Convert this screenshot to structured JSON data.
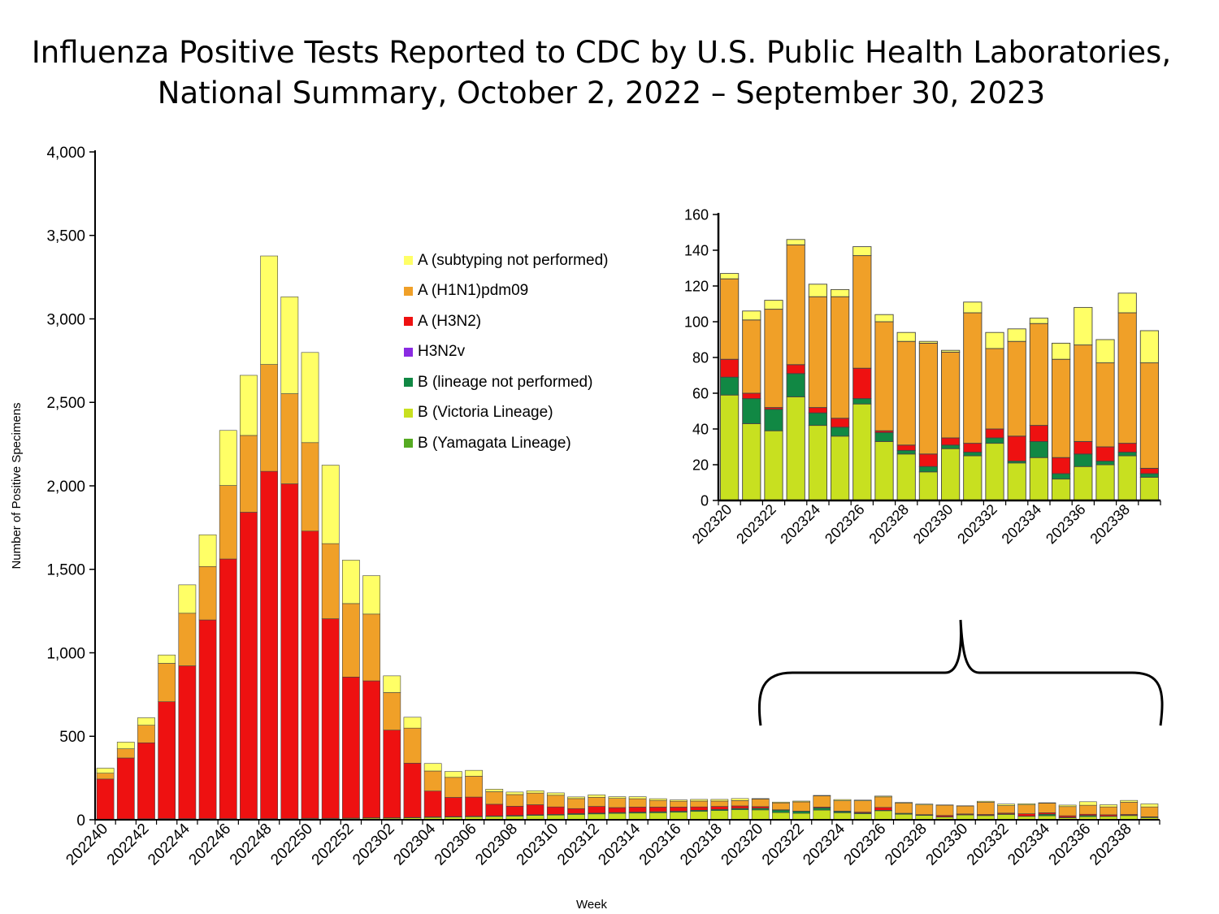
{
  "chart_title": {
    "line1": "Influenza Positive Tests Reported to CDC by U.S. Public Health Laboratories,",
    "line2": "National Summary, October 2, 2022 – September 30, 2023"
  },
  "legend": [
    {
      "label": "A (subtyping not performed)",
      "color": "#ffff66"
    },
    {
      "label": "A (H1N1)pdm09",
      "color": "#f0a028"
    },
    {
      "label": "A (H3N2)",
      "color": "#ee1111"
    },
    {
      "label": "H3N2v",
      "color": "#8a2be2"
    },
    {
      "label": "B (lineage not performed)",
      "color": "#118844"
    },
    {
      "label": "B (Victoria Lineage)",
      "color": "#c8e020"
    },
    {
      "label": "B (Yamagata Lineage)",
      "color": "#55aa22"
    }
  ],
  "chart_data": [
    {
      "type": "bar",
      "stacked": true,
      "title": "Influenza Positive Tests Reported to CDC by U.S. Public Health Laboratories, National Summary, October 2, 2022 – September 30, 2023",
      "xlabel": "Week",
      "ylabel": "Number of Positive Specimens",
      "ylim": [
        0,
        4000
      ],
      "yticks": [
        0,
        500,
        1000,
        1500,
        2000,
        2500,
        3000,
        3500,
        4000
      ],
      "ytick_labels": [
        "0",
        "500",
        "1,000",
        "1,500",
        "2,000",
        "2,500",
        "3,000",
        "3,500",
        "4,000"
      ],
      "categories": [
        "202240",
        "202241",
        "202242",
        "202243",
        "202244",
        "202245",
        "202246",
        "202247",
        "202248",
        "202249",
        "202250",
        "202251",
        "202252",
        "202301",
        "202302",
        "202303",
        "202304",
        "202305",
        "202306",
        "202307",
        "202308",
        "202309",
        "202310",
        "202311",
        "202312",
        "202313",
        "202314",
        "202315",
        "202316",
        "202317",
        "202318",
        "202319",
        "202320",
        "202321",
        "202322",
        "202323",
        "202324",
        "202325",
        "202326",
        "202327",
        "202328",
        "202329",
        "202330",
        "202331",
        "202332",
        "202333",
        "202334",
        "202335",
        "202336",
        "202337",
        "202338",
        "202339"
      ],
      "xtick_labels": [
        "202240",
        "202242",
        "202244",
        "202246",
        "202248",
        "202250",
        "202252",
        "202302",
        "202304",
        "202306",
        "202308",
        "202310",
        "202312",
        "202314",
        "202316",
        "202318",
        "202320",
        "202322",
        "202324",
        "202326",
        "202328",
        "202330",
        "202332",
        "202334",
        "202336",
        "202338"
      ],
      "series": [
        {
          "name": "B (Victoria Lineage)",
          "values": [
            3,
            4,
            5,
            6,
            6,
            6,
            6,
            6,
            6,
            6,
            8,
            8,
            8,
            10,
            10,
            12,
            14,
            16,
            18,
            20,
            22,
            26,
            28,
            32,
            35,
            38,
            40,
            42,
            45,
            50,
            55,
            60,
            59,
            43,
            39,
            58,
            42,
            36,
            54,
            33,
            26,
            16,
            29,
            25,
            32,
            21,
            24,
            12,
            19,
            20,
            25,
            13
          ]
        },
        {
          "name": "B (lineage not performed)",
          "values": [
            1,
            1,
            1,
            1,
            1,
            1,
            1,
            1,
            1,
            1,
            1,
            1,
            2,
            2,
            2,
            2,
            3,
            3,
            3,
            3,
            4,
            4,
            4,
            5,
            5,
            5,
            6,
            6,
            6,
            7,
            7,
            8,
            10,
            14,
            12,
            13,
            7,
            5,
            3,
            5,
            2,
            3,
            2,
            2,
            3,
            1,
            9,
            3,
            7,
            2,
            2,
            2
          ]
        },
        {
          "name": "A (H3N2)",
          "values": [
            240,
            365,
            455,
            700,
            915,
            1190,
            1555,
            1835,
            2080,
            2005,
            1720,
            1195,
            845,
            820,
            525,
            325,
            155,
            115,
            115,
            70,
            55,
            60,
            45,
            30,
            40,
            30,
            30,
            28,
            25,
            20,
            18,
            15,
            10,
            3,
            1,
            5,
            3,
            5,
            17,
            1,
            3,
            7,
            4,
            5,
            5,
            14,
            9,
            9,
            7,
            8,
            5,
            3
          ]
        },
        {
          "name": "H3N2v",
          "values": [
            0,
            0,
            0,
            0,
            0,
            0,
            0,
            0,
            0,
            0,
            0,
            0,
            0,
            0,
            0,
            0,
            0,
            0,
            0,
            0,
            0,
            0,
            0,
            0,
            0,
            0,
            0,
            0,
            0,
            0,
            0,
            0,
            0,
            0,
            0,
            0,
            0,
            0,
            0,
            0,
            0,
            0,
            0,
            0,
            0,
            0,
            0,
            0,
            0,
            0,
            0,
            0
          ]
        },
        {
          "name": "A (H1N1)pdm09",
          "values": [
            35,
            55,
            105,
            230,
            315,
            320,
            440,
            460,
            640,
            540,
            530,
            450,
            440,
            400,
            225,
            210,
            120,
            120,
            125,
            75,
            70,
            70,
            70,
            60,
            55,
            55,
            50,
            40,
            35,
            35,
            32,
            32,
            45,
            41,
            55,
            67,
            62,
            68,
            63,
            61,
            58,
            62,
            48,
            73,
            45,
            53,
            57,
            55,
            54,
            47,
            73,
            59
          ]
        },
        {
          "name": "A (subtyping not performed)",
          "values": [
            30,
            40,
            45,
            50,
            170,
            190,
            330,
            360,
            650,
            580,
            540,
            470,
            260,
            230,
            100,
            65,
            45,
            35,
            35,
            15,
            15,
            14,
            14,
            10,
            14,
            10,
            12,
            10,
            8,
            10,
            10,
            12,
            3,
            5,
            5,
            3,
            7,
            4,
            5,
            4,
            5,
            1,
            1,
            6,
            9,
            7,
            3,
            9,
            21,
            13,
            11,
            18
          ]
        }
      ]
    },
    {
      "type": "bar",
      "stacked": true,
      "title": "",
      "xlabel": "",
      "ylabel": "",
      "ylim": [
        0,
        160
      ],
      "yticks": [
        0,
        20,
        40,
        60,
        80,
        100,
        120,
        140,
        160
      ],
      "ytick_labels": [
        "0",
        "20",
        "40",
        "60",
        "80",
        "100",
        "120",
        "140",
        "160"
      ],
      "categories": [
        "202320",
        "202321",
        "202322",
        "202323",
        "202324",
        "202325",
        "202326",
        "202327",
        "202328",
        "202329",
        "202330",
        "202331",
        "202332",
        "202333",
        "202334",
        "202335",
        "202336",
        "202337",
        "202338",
        "202339"
      ],
      "xtick_labels": [
        "202320",
        "202322",
        "202324",
        "202326",
        "202328",
        "202330",
        "202332",
        "202334",
        "202336",
        "202338"
      ],
      "series": [
        {
          "name": "B (Victoria Lineage)",
          "values": [
            59,
            43,
            39,
            58,
            42,
            36,
            54,
            33,
            26,
            16,
            29,
            25,
            32,
            21,
            24,
            12,
            19,
            20,
            25,
            13
          ]
        },
        {
          "name": "B (lineage not performed)",
          "values": [
            10,
            14,
            12,
            13,
            7,
            5,
            3,
            5,
            2,
            3,
            2,
            2,
            3,
            1,
            9,
            3,
            7,
            2,
            2,
            2
          ]
        },
        {
          "name": "A (H3N2)",
          "values": [
            10,
            3,
            1,
            5,
            3,
            5,
            17,
            1,
            3,
            7,
            4,
            5,
            5,
            14,
            9,
            9,
            7,
            8,
            5,
            3
          ]
        },
        {
          "name": "H3N2v",
          "values": [
            0,
            0,
            0,
            0,
            0,
            0,
            0,
            0,
            0,
            0,
            0,
            0,
            0,
            0,
            0,
            0,
            0,
            0,
            0,
            0
          ]
        },
        {
          "name": "A (H1N1)pdm09",
          "values": [
            45,
            41,
            55,
            67,
            62,
            68,
            63,
            61,
            58,
            62,
            48,
            73,
            45,
            53,
            57,
            55,
            54,
            47,
            73,
            59
          ]
        },
        {
          "name": "A (subtyping not performed)",
          "values": [
            3,
            5,
            5,
            3,
            7,
            4,
            5,
            4,
            5,
            1,
            1,
            6,
            9,
            7,
            3,
            9,
            21,
            13,
            11,
            18
          ]
        }
      ]
    }
  ]
}
